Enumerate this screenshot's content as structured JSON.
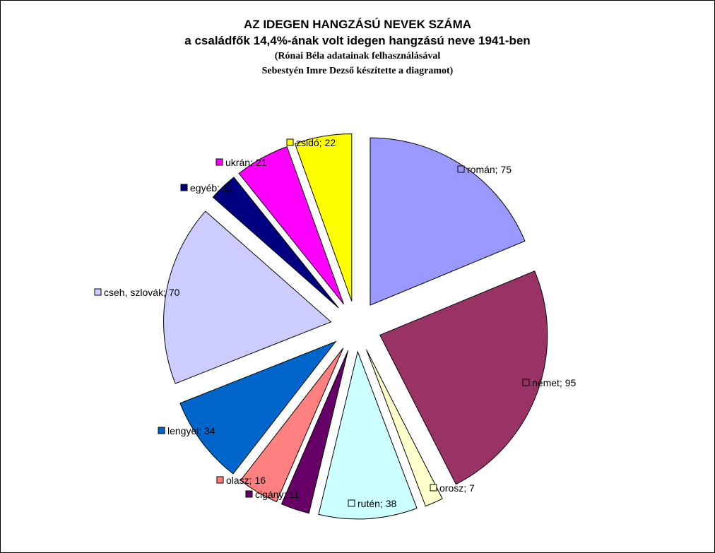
{
  "chart_data": {
    "type": "pie",
    "title": "AZ IDEGEN HANGZÁSÚ NEVEK SZÁMA",
    "subtitle": "a családfők 14,4%-ának volt idegen hangzású neve 1941-ben",
    "note_line1": "(Rónai Béla adatainak felhasználásával",
    "note_line2": "Sebestyén Imre Dezső készítette a diagramot)",
    "slices": [
      {
        "category": "román",
        "value": 75,
        "label": "román; 75",
        "color": "#9999ff"
      },
      {
        "category": "német",
        "value": 95,
        "label": "német; 95",
        "color": "#993366"
      },
      {
        "category": "orosz",
        "value": 7,
        "label": "orosz; 7",
        "color": "#ffffcc"
      },
      {
        "category": "rutén",
        "value": 38,
        "label": "rutén; 38",
        "color": "#ccffff"
      },
      {
        "category": "cigány",
        "value": 11,
        "label": "cigány; 11",
        "color": "#660066"
      },
      {
        "category": "olasz",
        "value": 16,
        "label": "olasz; 16",
        "color": "#ff8080"
      },
      {
        "category": "lengyel",
        "value": 34,
        "label": "lengyel; 34",
        "color": "#0066cc"
      },
      {
        "category": "cseh, szlovák",
        "value": 70,
        "label": "cseh, szlovák; 70",
        "color": "#ccccff"
      },
      {
        "category": "egyéb",
        "value": 11,
        "label": "egyéb; 11",
        "color": "#000080"
      },
      {
        "category": "ukrán",
        "value": 21,
        "label": "ukrán; 21",
        "color": "#ff00ff"
      },
      {
        "category": "zsidó",
        "value": 22,
        "label": "zsidó; 22",
        "color": "#ffff00"
      }
    ],
    "exploded": true
  }
}
